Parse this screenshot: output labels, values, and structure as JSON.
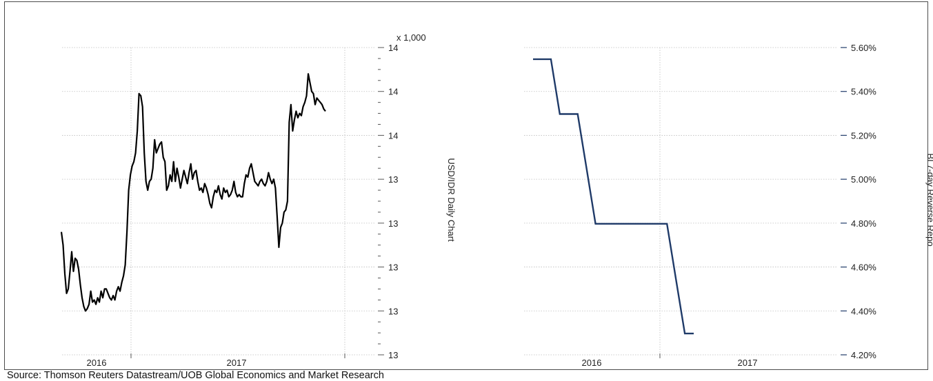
{
  "source_text": "Source: Thomson Reuters Datastream/UOB Global Economics and Market Research",
  "colors": {
    "usd_line": "#000000",
    "repo_line": "#1f3a68",
    "grid": "#bdbdbd",
    "axis": "#555555"
  },
  "chart_data": [
    {
      "type": "line",
      "title": "",
      "ylabel": "USD/IDR Daily Chart",
      "axis_multiplier_label": "x 1,000",
      "x_tick_labels": [
        "2016",
        "2017"
      ],
      "y_tick_labels": [
        "13",
        "13",
        "13",
        "13",
        "13",
        "14",
        "14",
        "14"
      ],
      "ylim": [
        12.7,
        14.1
      ],
      "grid": true,
      "series": [
        {
          "values": [
            13.26,
            13.2,
            13.07,
            12.98,
            13.0,
            13.08,
            13.17,
            13.08,
            13.14,
            13.13,
            13.09,
            13.02,
            12.96,
            12.92,
            12.9,
            12.91,
            12.93,
            12.99,
            12.94,
            12.95,
            12.93,
            12.96,
            12.94,
            12.99,
            12.96,
            13.0,
            13.0,
            12.98,
            12.96,
            12.95,
            12.97,
            12.95,
            12.99,
            13.01,
            12.99,
            13.03,
            13.06,
            13.11,
            13.26,
            13.45,
            13.52,
            13.56,
            13.58,
            13.62,
            13.72,
            13.89,
            13.88,
            13.83,
            13.62,
            13.49,
            13.45,
            13.49,
            13.5,
            13.55,
            13.68,
            13.62,
            13.64,
            13.66,
            13.67,
            13.6,
            13.58,
            13.45,
            13.47,
            13.52,
            13.49,
            13.58,
            13.49,
            13.55,
            13.51,
            13.46,
            13.5,
            13.54,
            13.51,
            13.48,
            13.53,
            13.57,
            13.5,
            13.53,
            13.54,
            13.49,
            13.45,
            13.46,
            13.44,
            13.48,
            13.46,
            13.43,
            13.39,
            13.37,
            13.42,
            13.45,
            13.44,
            13.47,
            13.43,
            13.41,
            13.46,
            13.44,
            13.45,
            13.42,
            13.43,
            13.45,
            13.49,
            13.44,
            13.42,
            13.43,
            13.42,
            13.42,
            13.48,
            13.52,
            13.51,
            13.55,
            13.57,
            13.53,
            13.49,
            13.48,
            13.47,
            13.49,
            13.5,
            13.48,
            13.47,
            13.49,
            13.53,
            13.5,
            13.48,
            13.5,
            13.46,
            13.33,
            13.19,
            13.28,
            13.3,
            13.35,
            13.36,
            13.4,
            13.76,
            13.84,
            13.72,
            13.77,
            13.81,
            13.78,
            13.8,
            13.79,
            13.83,
            13.85,
            13.88,
            13.98,
            13.94,
            13.9,
            13.89,
            13.84,
            13.87,
            13.86,
            13.85,
            13.84,
            13.82,
            13.81
          ]
        }
      ]
    },
    {
      "type": "line",
      "title": "",
      "ylabel": "BI 7-day Reverse Repo",
      "x_tick_labels": [
        "2016",
        "2017"
      ],
      "y_tick_labels": [
        "4.20%",
        "4.40%",
        "4.60%",
        "4.80%",
        "5.00%",
        "5.20%",
        "5.40%",
        "5.60%"
      ],
      "ylim": [
        4.2,
        5.6
      ],
      "grid": true,
      "series": [
        {
          "x": [
            "2016-04",
            "2016-05",
            "2016-06",
            "2016-07",
            "2016-08",
            "2016-09",
            "2016-10",
            "2016-11",
            "2016-12",
            "2017-01",
            "2017-02",
            "2017-03",
            "2017-04",
            "2017-05",
            "2017-06",
            "2017-07",
            "2017-08",
            "2017-09",
            "2017-10"
          ],
          "values": [
            5.5,
            5.5,
            5.5,
            5.25,
            5.25,
            5.25,
            5.0,
            4.75,
            4.75,
            4.75,
            4.75,
            4.75,
            4.75,
            4.75,
            4.75,
            4.75,
            4.5,
            4.25,
            4.25
          ]
        }
      ]
    }
  ]
}
